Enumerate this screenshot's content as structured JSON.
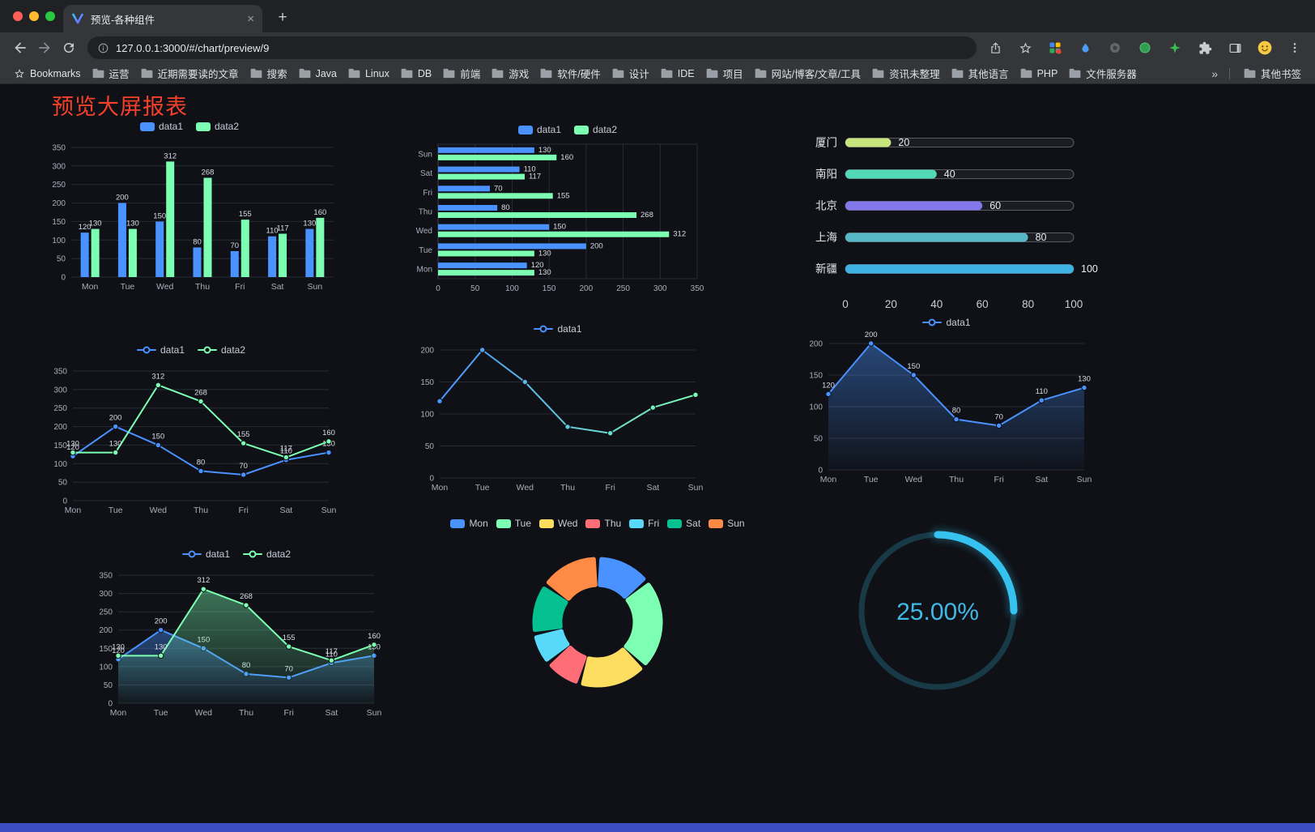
{
  "browser": {
    "tab_title": "预览-各种组件",
    "url": "127.0.0.1:3000/#/chart/preview/9",
    "bookmarks_bar": {
      "root_label": "Bookmarks",
      "items": [
        "运营",
        "近期需要读的文章",
        "搜索",
        "Java",
        "Linux",
        "DB",
        "前端",
        "游戏",
        "软件/硬件",
        "设计",
        "IDE",
        "项目",
        "网站/博客/文章/工具",
        "资讯未整理",
        "其他语言",
        "PHP",
        "文件服务器"
      ],
      "overflow": "»",
      "other": "其他书签"
    }
  },
  "page": {
    "title": "预览大屏报表",
    "background": "#0f1117",
    "footer_color": "#3b4cc0"
  },
  "chart_data": [
    {
      "type": "bar",
      "categories": [
        "Mon",
        "Tue",
        "Wed",
        "Thu",
        "Fri",
        "Sat",
        "Sun"
      ],
      "series": [
        {
          "name": "data1",
          "color": "#4992ff",
          "values": [
            120,
            200,
            150,
            80,
            70,
            110,
            130
          ]
        },
        {
          "name": "data2",
          "color": "#7cffb2",
          "values": [
            130,
            130,
            312,
            268,
            155,
            117,
            160
          ]
        }
      ],
      "ymax": 350,
      "ystep": 50,
      "labels": true
    },
    {
      "type": "hbar",
      "categories": [
        "Mon",
        "Tue",
        "Wed",
        "Thu",
        "Fri",
        "Sat",
        "Sun"
      ],
      "series": [
        {
          "name": "data1",
          "color": "#4992ff",
          "values": [
            120,
            200,
            150,
            80,
            70,
            110,
            130
          ]
        },
        {
          "name": "data2",
          "color": "#7cffb2",
          "values": [
            130,
            130,
            312,
            268,
            155,
            117,
            160
          ]
        }
      ],
      "xmax": 350,
      "xstep": 50
    },
    {
      "type": "progress",
      "items": [
        {
          "label": "厦门",
          "value": 20,
          "color": "#c8e57d"
        },
        {
          "label": "南阳",
          "value": 40,
          "color": "#53d8b7"
        },
        {
          "label": "北京",
          "value": 60,
          "color": "#8378ea"
        },
        {
          "label": "上海",
          "value": 80,
          "color": "#58b7c5"
        },
        {
          "label": "新疆",
          "value": 100,
          "color": "#3fb1e3"
        }
      ],
      "max": 100,
      "ticks": [
        0,
        20,
        40,
        60,
        80,
        100
      ]
    },
    {
      "type": "line",
      "categories": [
        "Mon",
        "Tue",
        "Wed",
        "Thu",
        "Fri",
        "Sat",
        "Sun"
      ],
      "series": [
        {
          "name": "data1",
          "color": "#4992ff",
          "values": [
            120,
            200,
            150,
            80,
            70,
            110,
            130
          ],
          "labels": true
        },
        {
          "name": "data2",
          "color": "#7cffb2",
          "values": [
            130,
            130,
            312,
            268,
            155,
            117,
            160
          ],
          "labels": true
        }
      ],
      "ymax": 350,
      "ystep": 50
    },
    {
      "type": "line",
      "categories": [
        "Mon",
        "Tue",
        "Wed",
        "Thu",
        "Fri",
        "Sat",
        "Sun"
      ],
      "series": [
        {
          "name": "data1",
          "color": "#4992ff",
          "values": [
            120,
            200,
            150,
            80,
            70,
            110,
            130
          ]
        }
      ],
      "ymax": 200,
      "ystep": 50,
      "gradient_stroke": [
        "#4992ff",
        "#7cffb2"
      ]
    },
    {
      "type": "line",
      "categories": [
        "Mon",
        "Tue",
        "Wed",
        "Thu",
        "Fri",
        "Sat",
        "Sun"
      ],
      "series": [
        {
          "name": "data1",
          "color": "#4992ff",
          "values": [
            120,
            200,
            150,
            80,
            70,
            110,
            130
          ],
          "labels": true,
          "area": true
        }
      ],
      "ymax": 200,
      "ystep": 50
    },
    {
      "type": "line",
      "categories": [
        "Mon",
        "Tue",
        "Wed",
        "Thu",
        "Fri",
        "Sat",
        "Sun"
      ],
      "series": [
        {
          "name": "data1",
          "color": "#4992ff",
          "values": [
            120,
            200,
            150,
            80,
            70,
            110,
            130
          ],
          "labels": true,
          "area": true
        },
        {
          "name": "data2",
          "color": "#7cffb2",
          "values": [
            130,
            130,
            312,
            268,
            155,
            117,
            160
          ],
          "labels": true,
          "area": true
        }
      ],
      "ymax": 350,
      "ystep": 50
    },
    {
      "type": "donut",
      "categories": [
        "Mon",
        "Tue",
        "Wed",
        "Thu",
        "Fri",
        "Sat",
        "Sun"
      ],
      "values": [
        120,
        200,
        150,
        80,
        70,
        110,
        130
      ],
      "colors": [
        "#4992ff",
        "#7cffb2",
        "#fddd60",
        "#ff6e76",
        "#58d9f9",
        "#05c091",
        "#ff8a45"
      ]
    },
    {
      "type": "gauge",
      "percent": 25,
      "label": "25.00%",
      "color": "#35c2ee",
      "track": "#173a46",
      "text_color": "#3fb9e6"
    }
  ]
}
